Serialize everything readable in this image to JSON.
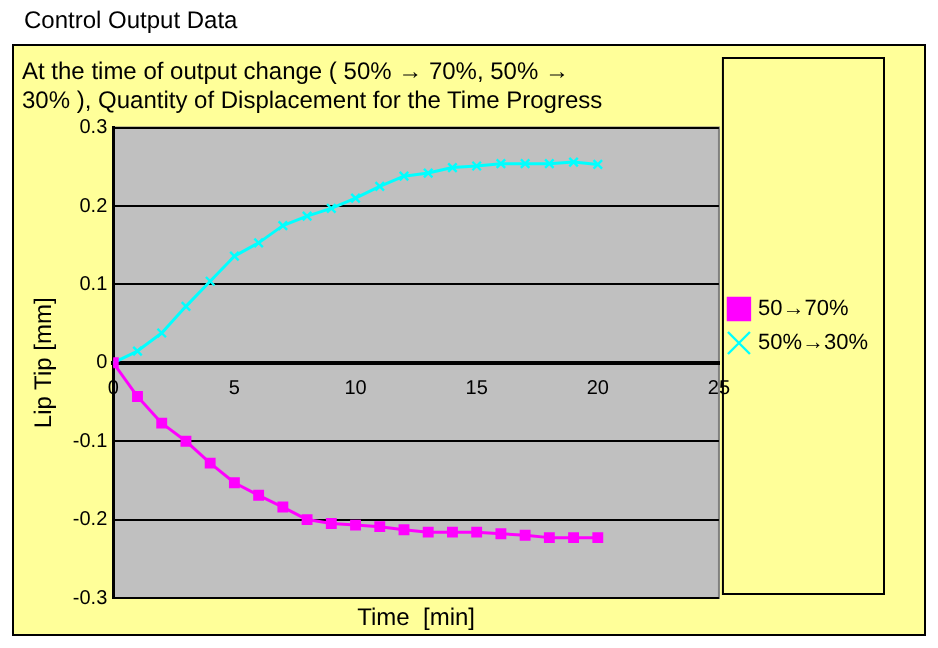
{
  "chart_data": {
    "type": "line",
    "title": "Control Output Data",
    "subtitle": "At the time of output change ( 50% → 70%, 50% → 30% ), Quantity of Displacement for the Time Progress",
    "xlabel": "Time  [min]",
    "ylabel": "Lip Tip [mm]",
    "x": [
      0,
      1,
      2,
      3,
      4,
      5,
      6,
      7,
      8,
      9,
      10,
      11,
      12,
      13,
      14,
      15,
      16,
      17,
      18,
      19,
      20
    ],
    "series": [
      {
        "name": "50→70%",
        "color": "#ff00ff",
        "marker": "square",
        "values": [
          0,
          -0.043,
          -0.077,
          -0.1,
          -0.128,
          -0.153,
          -0.169,
          -0.184,
          -0.2,
          -0.205,
          -0.207,
          -0.209,
          -0.213,
          -0.216,
          -0.216,
          -0.216,
          -0.218,
          -0.22,
          -0.223,
          -0.223,
          -0.223
        ]
      },
      {
        "name": "50%→30%",
        "color": "#00ffff",
        "marker": "cross",
        "values": [
          0,
          0.015,
          0.038,
          0.072,
          0.104,
          0.136,
          0.153,
          0.175,
          0.187,
          0.197,
          0.21,
          0.225,
          0.238,
          0.242,
          0.249,
          0.251,
          0.254,
          0.254,
          0.254,
          0.256,
          0.253
        ]
      }
    ],
    "xlim": [
      0,
      25
    ],
    "xticks": [
      0,
      5,
      10,
      15,
      20,
      25
    ],
    "ylim": [
      -0.3,
      0.3
    ],
    "yticks": [
      -0.3,
      -0.2,
      -0.1,
      0,
      0.1,
      0.2,
      0.3
    ],
    "grid": "y",
    "legend": "right",
    "line_style": "solid"
  }
}
